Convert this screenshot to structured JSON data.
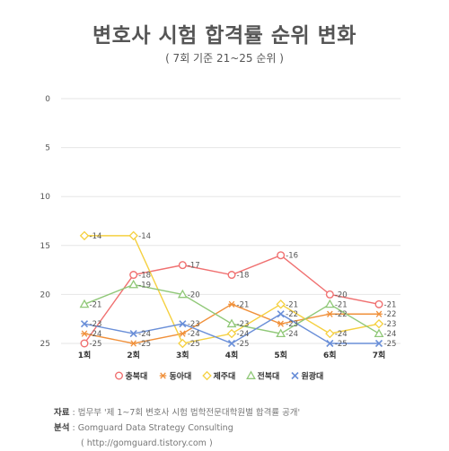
{
  "chart_data": {
    "type": "line",
    "title": "변호사 시험 합격률 순위 변화",
    "subtitle": "( 7회 기준 21~25 순위 )",
    "categories": [
      "1회",
      "2회",
      "3회",
      "4회",
      "5회",
      "6회",
      "7회"
    ],
    "y_ticks": [
      "0",
      "5",
      "10",
      "15",
      "20",
      "25"
    ],
    "ylim": [
      0,
      25
    ],
    "y_reversed": true,
    "grid": true,
    "legend_position": "bottom",
    "series": [
      {
        "name": "충북대",
        "color": "#f07070",
        "marker": "circle",
        "values": [
          25,
          18,
          17,
          18,
          16,
          20,
          21
        ]
      },
      {
        "name": "동아대",
        "color": "#f0903a",
        "marker": "asterisk",
        "values": [
          24,
          25,
          24,
          21,
          23,
          22,
          22
        ]
      },
      {
        "name": "제주대",
        "color": "#f5d040",
        "marker": "diamond",
        "values": [
          14,
          14,
          25,
          24,
          21,
          24,
          23
        ]
      },
      {
        "name": "전북대",
        "color": "#90c878",
        "marker": "triangle",
        "values": [
          21,
          19,
          20,
          23,
          24,
          21,
          24
        ]
      },
      {
        "name": "원광대",
        "color": "#6a8fd8",
        "marker": "x",
        "values": [
          23,
          24,
          23,
          25,
          22,
          25,
          25
        ]
      }
    ]
  },
  "source": {
    "label1": "자료",
    "text1": " : 법무부 '제 1~7회 변호사 시험 법학전문대학원별 합격률 공개'",
    "label2": "분석",
    "text2": " : Gomguard Data Strategy Consulting",
    "text3": "( http://gomguard.tistory.com )"
  }
}
